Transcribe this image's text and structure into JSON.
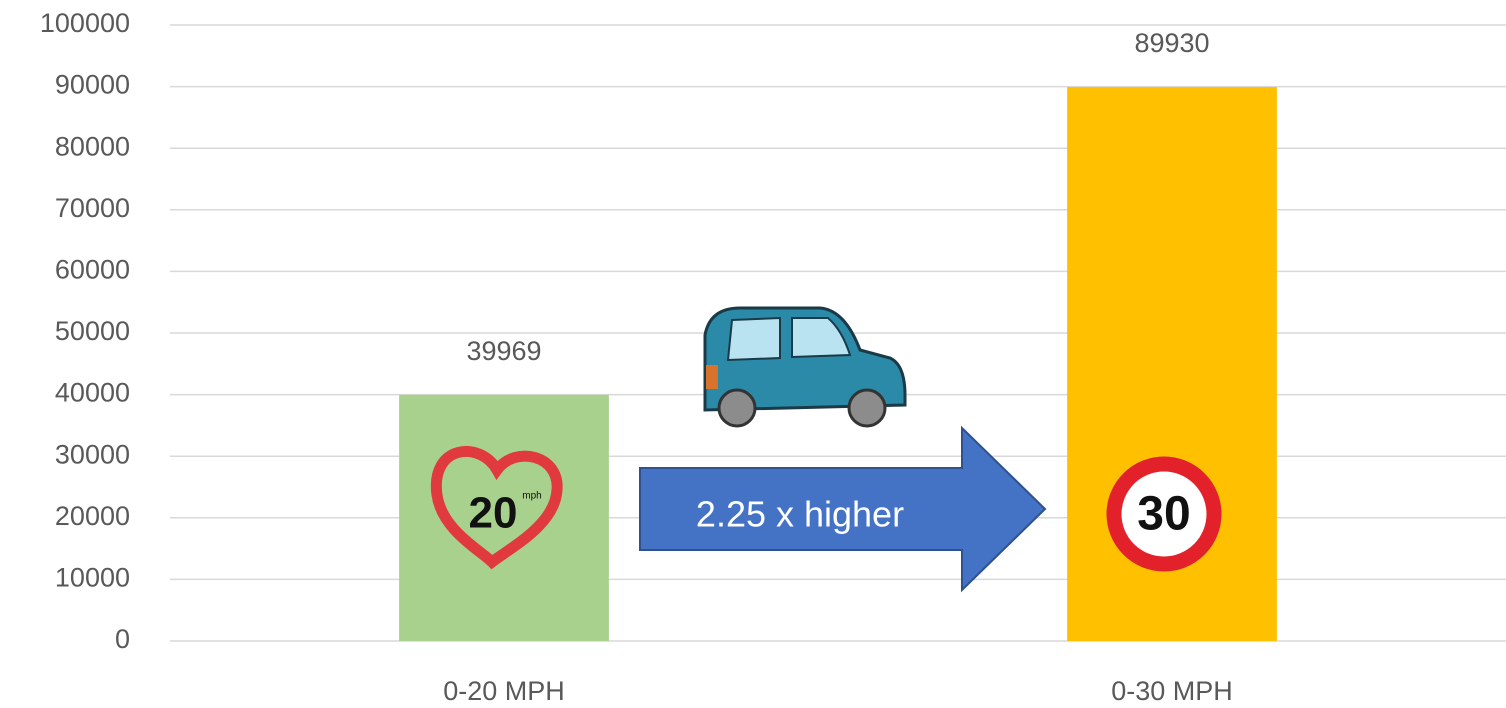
{
  "chart_data": {
    "type": "bar",
    "categories": [
      "0-20 MPH",
      "0-30 MPH"
    ],
    "values": [
      39969,
      89930
    ],
    "colors": [
      "#a9d18e",
      "#ffc000"
    ],
    "ylim": [
      0,
      100000
    ],
    "yticks": [
      0,
      10000,
      20000,
      30000,
      40000,
      50000,
      60000,
      70000,
      80000,
      90000,
      100000
    ],
    "grid": true,
    "annotations": {
      "arrow": "2.25 x higher",
      "sign_20": "20",
      "sign_20_unit": "mph",
      "sign_30": "30"
    }
  }
}
